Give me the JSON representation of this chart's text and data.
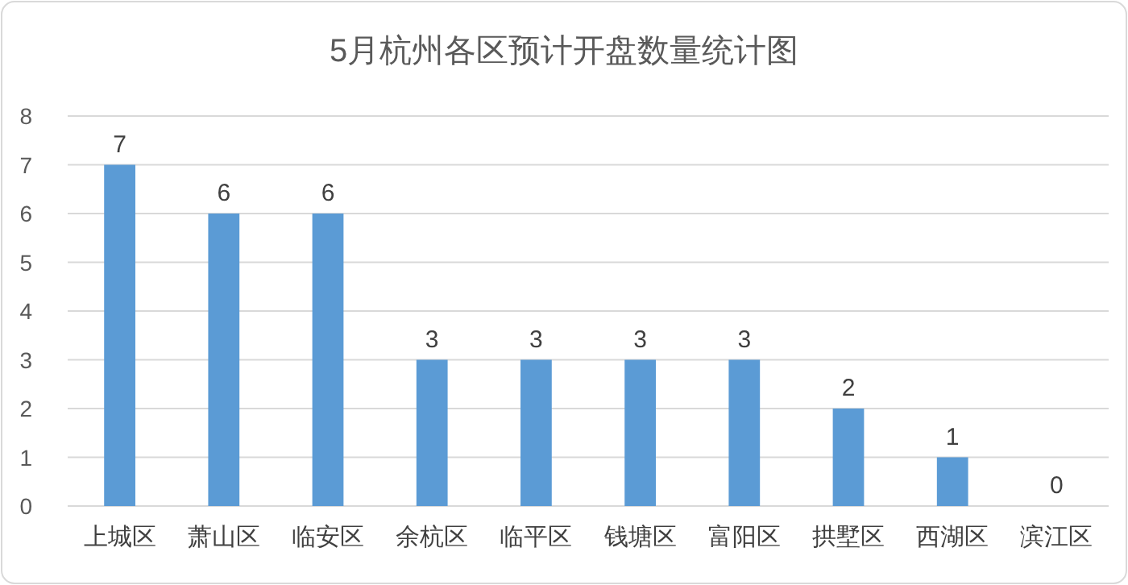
{
  "chart_data": {
    "type": "bar",
    "title": "5月杭州各区预计开盘数量统计图",
    "categories": [
      "上城区",
      "萧山区",
      "临安区",
      "余杭区",
      "临平区",
      "钱塘区",
      "富阳区",
      "拱墅区",
      "西湖区",
      "滨江区"
    ],
    "values": [
      7,
      6,
      6,
      3,
      3,
      3,
      3,
      2,
      1,
      0
    ],
    "color": "#5b9bd5",
    "ylim": [
      0,
      8
    ],
    "yticks": [
      0,
      1,
      2,
      3,
      4,
      5,
      6,
      7,
      8
    ],
    "grid": "y",
    "data_labels": true
  }
}
